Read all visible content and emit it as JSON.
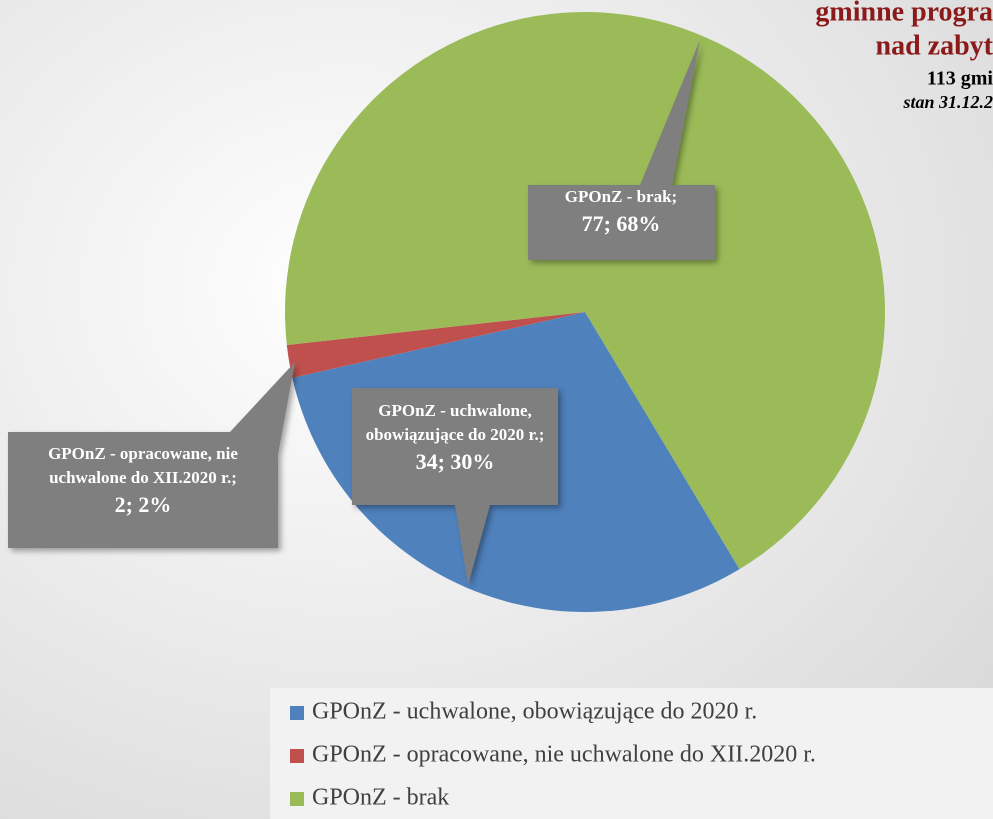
{
  "chart_data": {
    "type": "pie",
    "title": [
      "gminne progra",
      "nad zabyt"
    ],
    "subtitle": "113 gmi",
    "note": "stan 31.12.2",
    "categories": [
      "GPOnZ - uchwalone, obowiązujące do 2020 r.",
      "GPOnZ - opracowane, nie uchwalone do XII.2020 r.",
      "GPOnZ - brak"
    ],
    "values": [
      34,
      2,
      77
    ],
    "value_labels": [
      "34; 30%",
      "2; 2%",
      "77; 68%"
    ],
    "label_lines": [
      [
        "GPOnZ - uchwalone,",
        "obowiązujące do 2020 r.;"
      ],
      [
        "GPOnZ - opracowane, nie",
        "uchwalone do XII.2020 r.;"
      ],
      [
        "GPOnZ - brak;"
      ]
    ],
    "colors": [
      "#4f81bd",
      "#c0504d",
      "#9bbb59"
    ],
    "legend": "bottom-right"
  }
}
